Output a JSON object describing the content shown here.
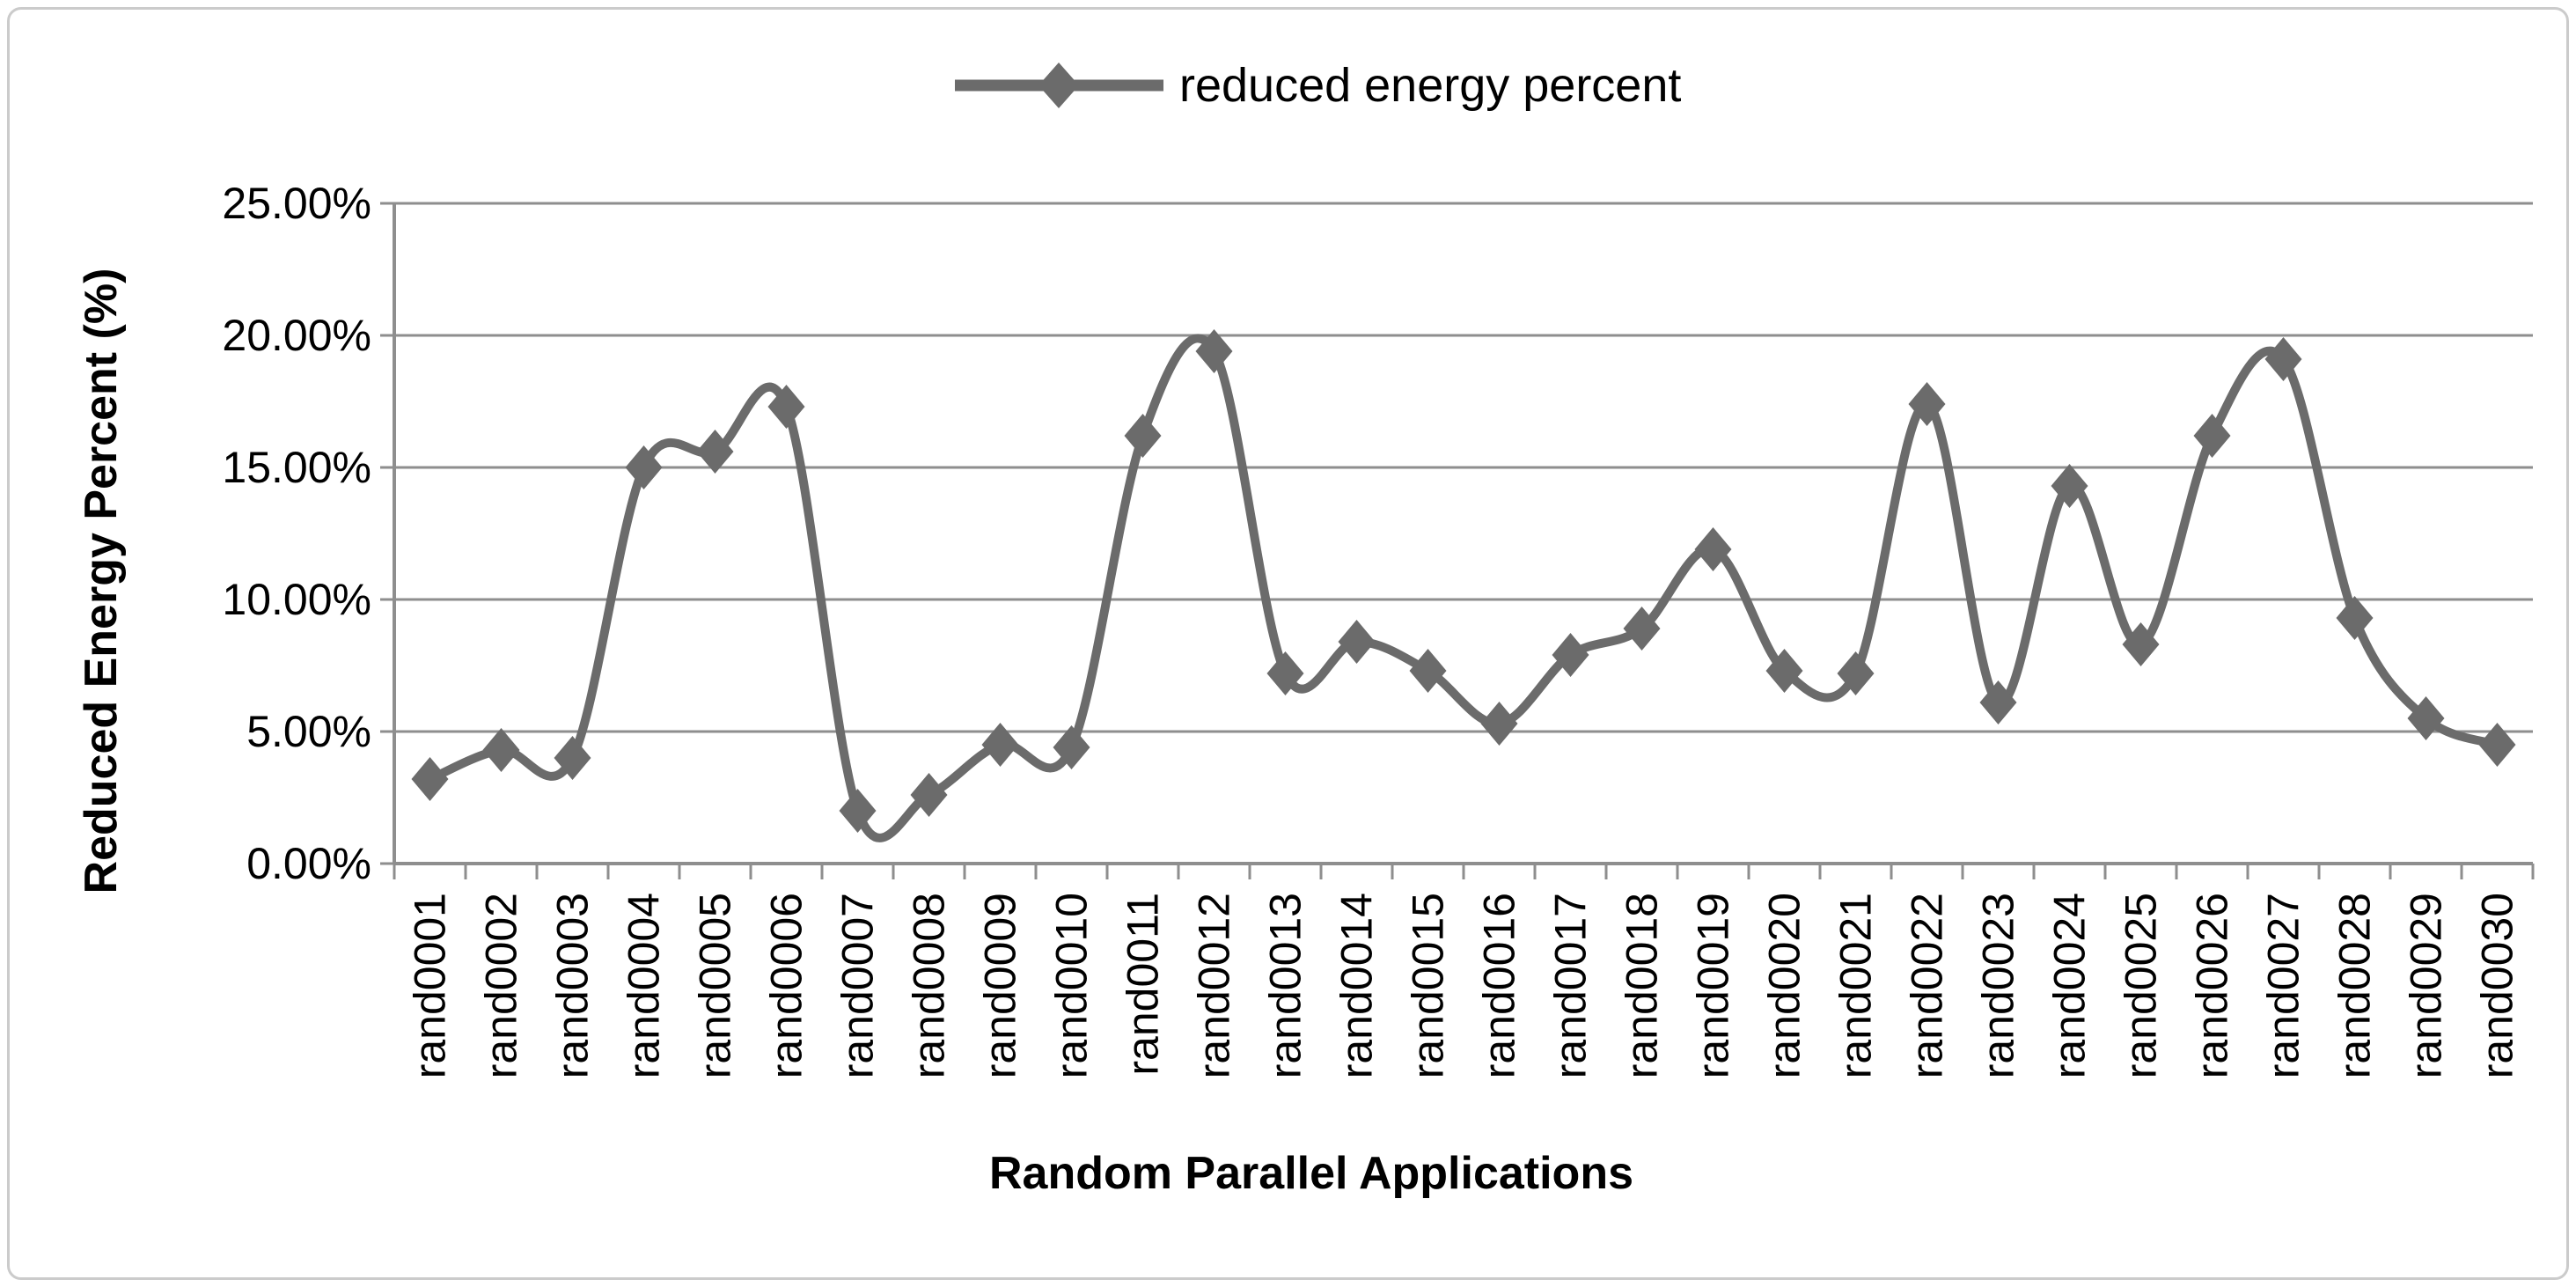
{
  "chart_data": {
    "type": "line",
    "title": "",
    "legend": {
      "label": "reduced energy percent",
      "position": "top-center"
    },
    "xlabel": "Random Parallel Applications",
    "ylabel": "Reduced Energy Percent (%)",
    "categories": [
      "rand0001",
      "rand0002",
      "rand0003",
      "rand0004",
      "rand0005",
      "rand0006",
      "rand0007",
      "rand0008",
      "rand0009",
      "rand0010",
      "rand0011",
      "rand0012",
      "rand0013",
      "rand0014",
      "rand0015",
      "rand0016",
      "rand0017",
      "rand0018",
      "rand0019",
      "rand0020",
      "rand0021",
      "rand0022",
      "rand0023",
      "rand0024",
      "rand0025",
      "rand0026",
      "rand0027",
      "rand0028",
      "rand0029",
      "rand0030"
    ],
    "series": [
      {
        "name": "reduced energy percent",
        "values": [
          3.2,
          4.3,
          4.0,
          15.0,
          15.6,
          17.3,
          2.0,
          2.6,
          4.5,
          4.4,
          16.2,
          19.4,
          7.2,
          8.4,
          7.3,
          5.3,
          7.9,
          8.9,
          11.9,
          7.3,
          7.2,
          17.4,
          6.1,
          14.3,
          8.3,
          16.2,
          19.1,
          9.3,
          5.5,
          4.5
        ]
      }
    ],
    "ylim": [
      0,
      25
    ],
    "yticks": [
      0,
      5,
      10,
      15,
      20,
      25
    ],
    "ytick_labels": [
      "0.00%",
      "5.00%",
      "10.00%",
      "15.00%",
      "20.00%",
      "25.00%"
    ],
    "grid": true,
    "smooth_line": true,
    "marker": "diamond",
    "colors": {
      "series": "#6b6b6b",
      "grid": "#8e8e8e",
      "axis": "#8e8e8e",
      "text": "#000000",
      "frame_border": "#cbcbcb",
      "background": "#ffffff"
    }
  }
}
